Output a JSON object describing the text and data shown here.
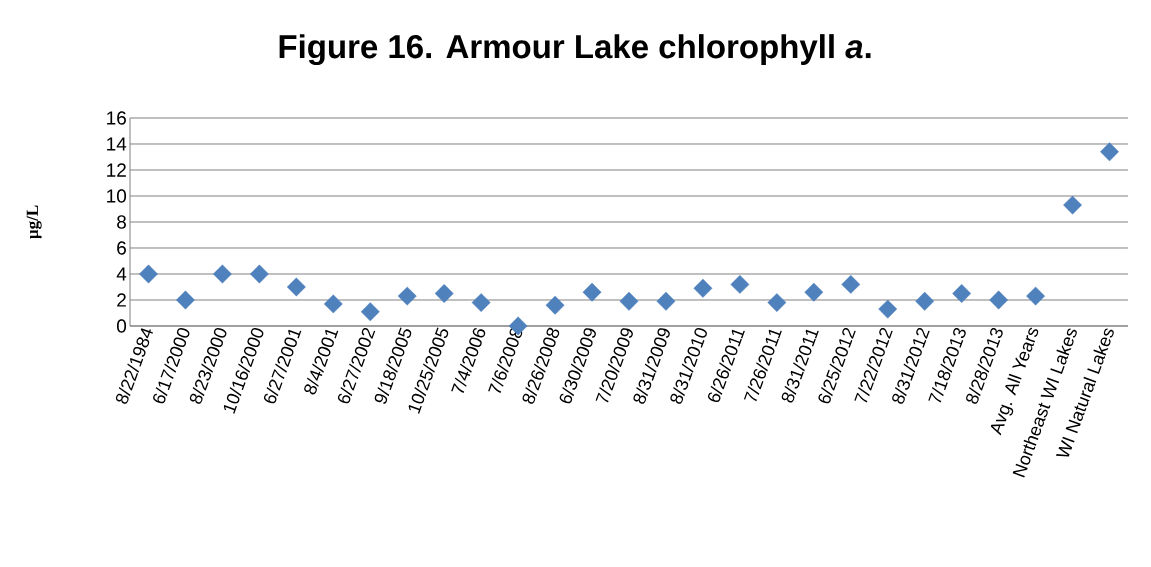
{
  "chart_data": {
    "type": "scatter",
    "title": "Figure 16. Armour Lake chlorophyll *a*.",
    "ylabel": "µg/L",
    "categories": [
      "8/22/1984",
      "6/17/2000",
      "8/23/2000",
      "10/16/2000",
      "6/27/2001",
      "8/4/2001",
      "6/27/2002",
      "9/18/2005",
      "10/25/2005",
      "7/4/2006",
      "7/6/2008",
      "8/26/2008",
      "6/30/2009",
      "7/20/2009",
      "8/31/2009",
      "8/31/2010",
      "6/26/2011",
      "7/26/2011",
      "8/31/2011",
      "6/25/2012",
      "7/22/2012",
      "8/31/2012",
      "7/18/2013",
      "8/28/2013",
      "Avg. All Years",
      "Northeast WI Lakes",
      "WI Natural Lakes"
    ],
    "values": [
      4.0,
      2.0,
      4.0,
      4.0,
      3.0,
      1.7,
      1.1,
      2.3,
      2.5,
      1.8,
      0.0,
      1.6,
      2.6,
      1.9,
      1.9,
      2.9,
      3.2,
      1.8,
      2.6,
      3.2,
      1.3,
      1.9,
      2.5,
      2.0,
      2.3,
      9.3,
      13.4
    ],
    "color": "#4f81bd",
    "marker": "diamond",
    "grid": "y",
    "ylim": [
      0,
      16
    ],
    "yticks": [
      0,
      2,
      4,
      6,
      8,
      10,
      12,
      14,
      16
    ]
  }
}
